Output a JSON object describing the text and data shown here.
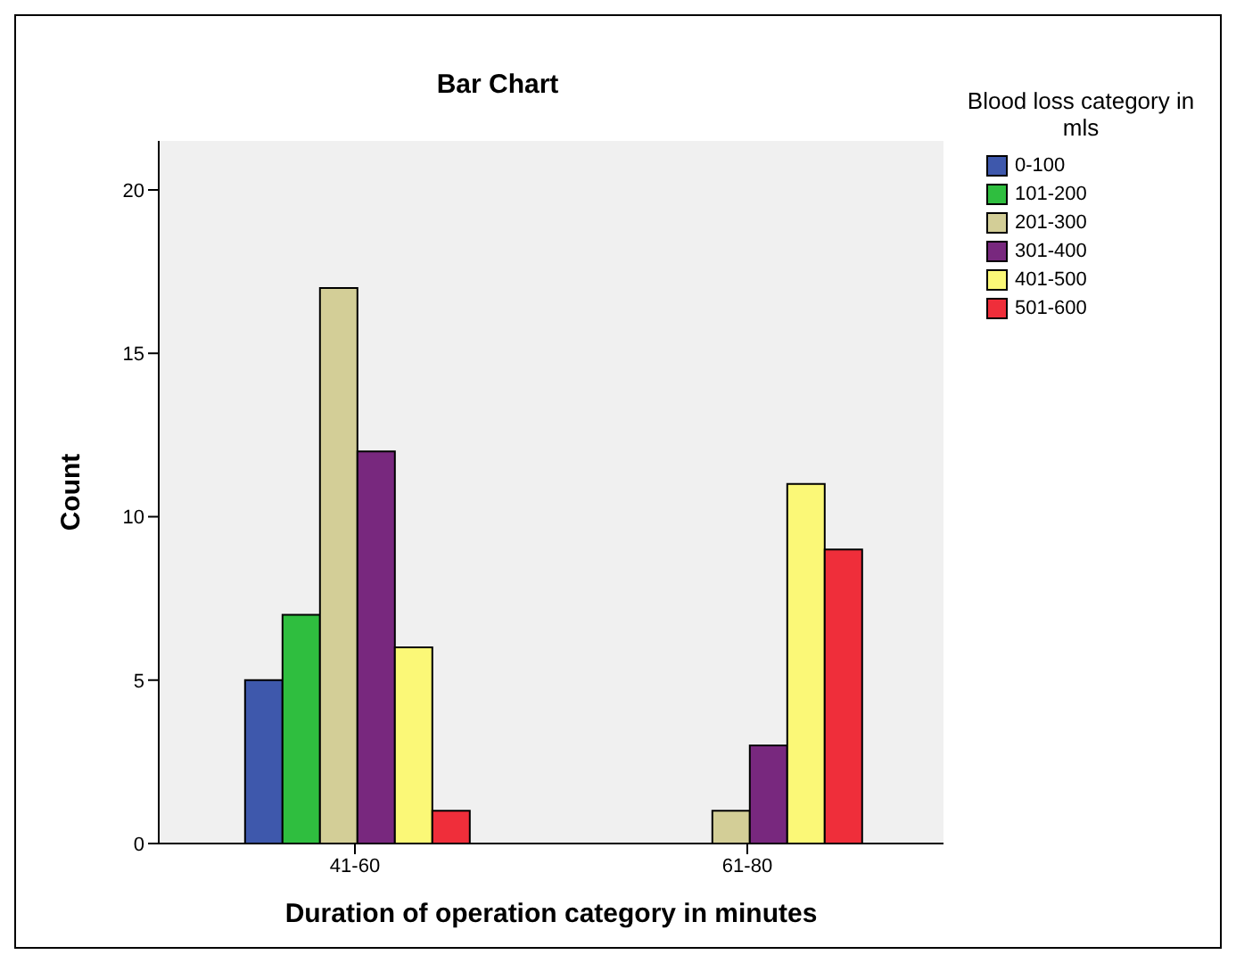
{
  "chart_data": {
    "type": "bar",
    "title": "Bar Chart",
    "xlabel": "Duration of operation category in minutes",
    "ylabel": "Count",
    "legend_title": "Blood loss category in mls",
    "categories": [
      "41-60",
      "61-80"
    ],
    "series": [
      {
        "name": "0-100",
        "color": "#3e58ac",
        "values": [
          5,
          null
        ]
      },
      {
        "name": "101-200",
        "color": "#2fbe3f",
        "values": [
          7,
          null
        ]
      },
      {
        "name": "201-300",
        "color": "#d3ce97",
        "values": [
          17,
          1
        ]
      },
      {
        "name": "301-400",
        "color": "#78287e",
        "values": [
          12,
          3
        ]
      },
      {
        "name": "401-500",
        "color": "#fbf877",
        "values": [
          6,
          11
        ]
      },
      {
        "name": "501-600",
        "color": "#ef2e3a",
        "values": [
          1,
          9
        ]
      }
    ],
    "ylim": [
      0,
      21.5
    ],
    "yticks": [
      0,
      5,
      10,
      15,
      20
    ],
    "legend": "right"
  }
}
